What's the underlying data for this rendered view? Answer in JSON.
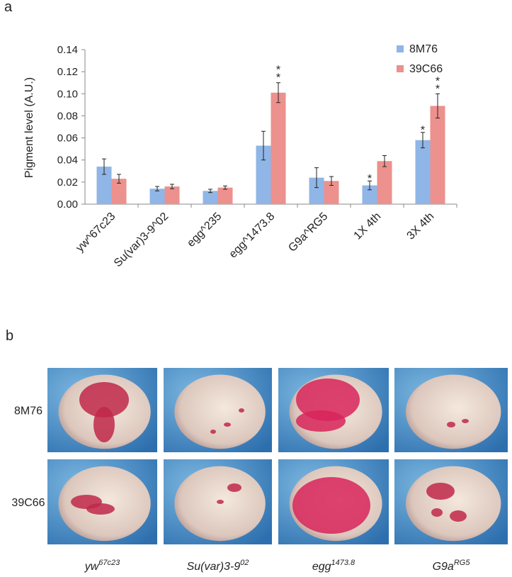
{
  "panel_a_label": "a",
  "chart_data": {
    "type": "bar",
    "y_label": "Pigment level (A.U.)",
    "categories": [
      "yw^67c23",
      "Su(var)3-9^02",
      "egg^235",
      "egg^1473.8",
      "G9a^RG5",
      "1X 4th",
      "3X 4th"
    ],
    "series": [
      {
        "name": "8M76",
        "color": "#8fb6e6",
        "values": [
          0.034,
          0.014,
          0.012,
          0.053,
          0.024,
          0.017,
          0.058
        ],
        "errors": [
          0.007,
          0.002,
          0.0015,
          0.013,
          0.009,
          0.004,
          0.007
        ],
        "significance": [
          null,
          null,
          null,
          null,
          null,
          "*",
          "*"
        ]
      },
      {
        "name": "39C66",
        "color": "#ec918d",
        "values": [
          0.023,
          0.016,
          0.015,
          0.101,
          0.021,
          0.039,
          0.089
        ],
        "errors": [
          0.004,
          0.002,
          0.0015,
          0.009,
          0.004,
          0.005,
          0.011
        ],
        "significance": [
          null,
          null,
          null,
          "**",
          null,
          null,
          "**"
        ]
      }
    ],
    "ylim": [
      0,
      0.14
    ],
    "yticks": [
      {
        "value": 0,
        "label": "0.00"
      },
      {
        "value": 0.02,
        "label": "0.02"
      },
      {
        "value": 0.04,
        "label": "0.04"
      },
      {
        "value": 0.06,
        "label": "0.06"
      },
      {
        "value": 0.08,
        "label": "0.08"
      },
      {
        "value": 0.1,
        "label": "0.10"
      },
      {
        "value": 0.12,
        "label": "0.12"
      },
      {
        "value": 0.14,
        "label": "0.14"
      }
    ],
    "grid": false,
    "legend": "top-right"
  },
  "panel_b": {
    "label": "b",
    "rows": [
      "8M76",
      "39C66"
    ],
    "columns": [
      {
        "base": "yw",
        "sup": "67c23"
      },
      {
        "base": "Su(var)3-9",
        "sup": "02"
      },
      {
        "base": "egg",
        "sup": "1473.8"
      },
      {
        "base": "G9a",
        "sup": "RG5"
      }
    ]
  }
}
